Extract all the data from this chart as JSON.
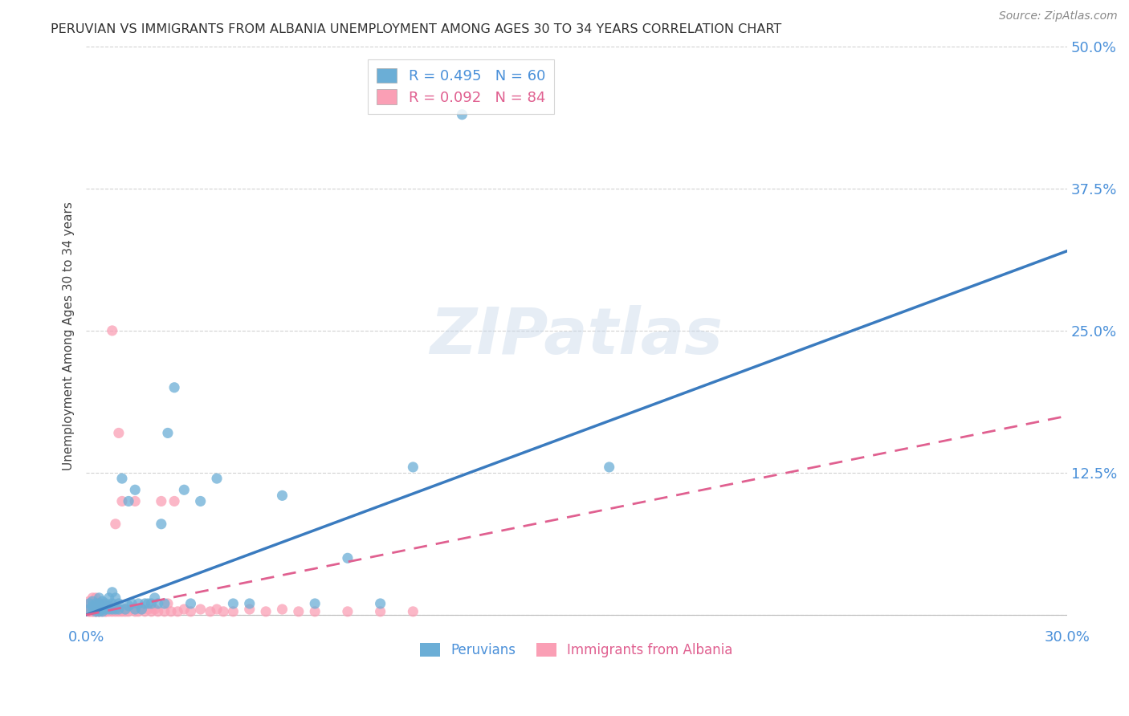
{
  "title": "PERUVIAN VS IMMIGRANTS FROM ALBANIA UNEMPLOYMENT AMONG AGES 30 TO 34 YEARS CORRELATION CHART",
  "source": "Source: ZipAtlas.com",
  "ylabel": "Unemployment Among Ages 30 to 34 years",
  "xlim": [
    0.0,
    0.3
  ],
  "ylim": [
    -0.01,
    0.5
  ],
  "xticks": [
    0.0,
    0.05,
    0.1,
    0.15,
    0.2,
    0.25,
    0.3
  ],
  "xticklabels": [
    "0.0%",
    "",
    "",
    "",
    "",
    "",
    "30.0%"
  ],
  "yticks": [
    0.0,
    0.125,
    0.25,
    0.375,
    0.5
  ],
  "yticklabels": [
    "",
    "12.5%",
    "25.0%",
    "37.5%",
    "50.0%"
  ],
  "background_color": "#ffffff",
  "grid_color": "#cccccc",
  "watermark": "ZIPatlas",
  "blue_color": "#6baed6",
  "pink_color": "#fa9fb5",
  "blue_line_color": "#3a7bbf",
  "pink_line_color": "#e06090",
  "peru_x": [
    0.001,
    0.001,
    0.002,
    0.002,
    0.002,
    0.003,
    0.003,
    0.003,
    0.003,
    0.004,
    0.004,
    0.004,
    0.004,
    0.005,
    0.005,
    0.005,
    0.005,
    0.006,
    0.006,
    0.007,
    0.007,
    0.007,
    0.008,
    0.008,
    0.008,
    0.009,
    0.009,
    0.01,
    0.01,
    0.011,
    0.012,
    0.013,
    0.013,
    0.014,
    0.015,
    0.015,
    0.016,
    0.017,
    0.018,
    0.019,
    0.02,
    0.021,
    0.022,
    0.023,
    0.024,
    0.025,
    0.027,
    0.03,
    0.032,
    0.035,
    0.04,
    0.045,
    0.05,
    0.06,
    0.07,
    0.08,
    0.09,
    0.1,
    0.115,
    0.16
  ],
  "peru_y": [
    0.005,
    0.01,
    0.005,
    0.008,
    0.012,
    0.003,
    0.007,
    0.005,
    0.01,
    0.003,
    0.006,
    0.01,
    0.015,
    0.005,
    0.008,
    0.012,
    0.003,
    0.005,
    0.01,
    0.005,
    0.008,
    0.015,
    0.005,
    0.01,
    0.02,
    0.005,
    0.015,
    0.005,
    0.01,
    0.12,
    0.005,
    0.008,
    0.1,
    0.01,
    0.005,
    0.11,
    0.01,
    0.005,
    0.01,
    0.01,
    0.01,
    0.015,
    0.01,
    0.08,
    0.01,
    0.16,
    0.2,
    0.11,
    0.01,
    0.1,
    0.12,
    0.01,
    0.01,
    0.105,
    0.01,
    0.05,
    0.01,
    0.13,
    0.44,
    0.13
  ],
  "alba_x": [
    0.001,
    0.001,
    0.001,
    0.001,
    0.001,
    0.001,
    0.001,
    0.001,
    0.001,
    0.001,
    0.002,
    0.002,
    0.002,
    0.002,
    0.002,
    0.002,
    0.002,
    0.003,
    0.003,
    0.003,
    0.003,
    0.003,
    0.003,
    0.003,
    0.004,
    0.004,
    0.004,
    0.004,
    0.004,
    0.005,
    0.005,
    0.005,
    0.005,
    0.006,
    0.006,
    0.006,
    0.006,
    0.007,
    0.007,
    0.007,
    0.008,
    0.008,
    0.008,
    0.009,
    0.009,
    0.01,
    0.01,
    0.01,
    0.011,
    0.011,
    0.012,
    0.012,
    0.013,
    0.014,
    0.015,
    0.015,
    0.016,
    0.017,
    0.018,
    0.019,
    0.02,
    0.021,
    0.022,
    0.023,
    0.024,
    0.025,
    0.026,
    0.027,
    0.028,
    0.03,
    0.032,
    0.035,
    0.038,
    0.04,
    0.042,
    0.045,
    0.05,
    0.055,
    0.06,
    0.065,
    0.07,
    0.08,
    0.09,
    0.1
  ],
  "alba_y": [
    0.003,
    0.005,
    0.008,
    0.005,
    0.01,
    0.005,
    0.003,
    0.007,
    0.005,
    0.012,
    0.005,
    0.003,
    0.008,
    0.01,
    0.005,
    0.015,
    0.003,
    0.003,
    0.005,
    0.008,
    0.003,
    0.01,
    0.005,
    0.015,
    0.003,
    0.005,
    0.008,
    0.01,
    0.003,
    0.003,
    0.005,
    0.008,
    0.01,
    0.003,
    0.005,
    0.008,
    0.003,
    0.003,
    0.005,
    0.008,
    0.003,
    0.005,
    0.25,
    0.003,
    0.08,
    0.003,
    0.005,
    0.16,
    0.003,
    0.1,
    0.003,
    0.005,
    0.003,
    0.005,
    0.003,
    0.1,
    0.003,
    0.005,
    0.003,
    0.005,
    0.003,
    0.005,
    0.003,
    0.1,
    0.003,
    0.01,
    0.003,
    0.1,
    0.003,
    0.005,
    0.003,
    0.005,
    0.003,
    0.005,
    0.003,
    0.003,
    0.005,
    0.003,
    0.005,
    0.003,
    0.003,
    0.003,
    0.003,
    0.003
  ],
  "peru_line_x": [
    0.0,
    0.3
  ],
  "peru_line_y": [
    0.0,
    0.32
  ],
  "alba_line_x": [
    0.0,
    0.3
  ],
  "alba_line_y": [
    0.0,
    0.175
  ]
}
